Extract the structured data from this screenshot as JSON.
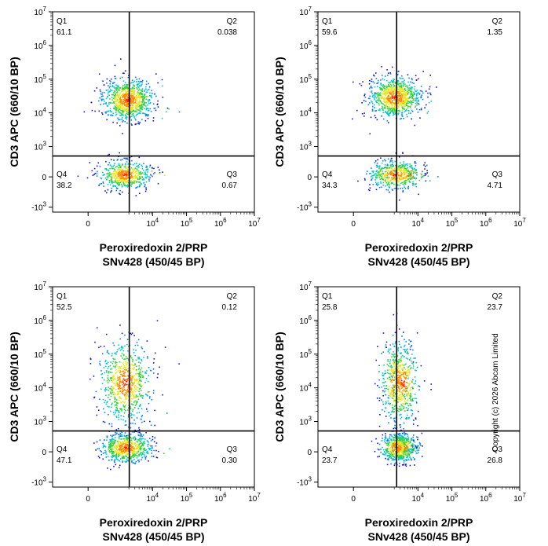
{
  "copyright": "Copyright (c) 2026 Abcam Limited",
  "palette": [
    "#1414c8",
    "#0a7dff",
    "#00c8d2",
    "#34d23c",
    "#e8e61e",
    "#ff8c00",
    "#ff1e00"
  ],
  "chart_data": [
    {
      "type": "scatter",
      "subtype": "flow-cytometry-density-plot",
      "xlabel": [
        "Peroxiredoxin 2/PRP",
        "SNv428 (450/45 BP)"
      ],
      "ylabel": "CD3 APC (660/10 BP)",
      "x_scale": "biexponential",
      "y_scale": "biexponential",
      "x_ticks": [
        "0",
        "10^4",
        "10^5",
        "10^6",
        "10^7"
      ],
      "y_ticks": [
        "10^7",
        "10^6",
        "10^5",
        "10^4",
        "10^3",
        "0",
        "-10^3"
      ],
      "gates": [
        {
          "name": "Q1",
          "value": "61.1"
        },
        {
          "name": "Q2",
          "value": "0.038"
        },
        {
          "name": "Q3",
          "value": "0.67"
        },
        {
          "name": "Q4",
          "value": "38.2"
        }
      ],
      "populations": [
        {
          "x": 1800,
          "y": 25000,
          "fraction": 0.611
        },
        {
          "x": 1500,
          "y": 80,
          "fraction": 0.382
        },
        {
          "x": 9000,
          "y": 20000,
          "fraction": 0.00038
        },
        {
          "x": 9000,
          "y": 60,
          "fraction": 0.0067
        }
      ]
    },
    {
      "type": "scatter",
      "subtype": "flow-cytometry-density-plot",
      "xlabel": [
        "Peroxiredoxin 2/PRP",
        "SNv428 (450/45 BP)"
      ],
      "ylabel": "CD3 APC (660/10 BP)",
      "x_scale": "biexponential",
      "y_scale": "biexponential",
      "x_ticks": [
        "0",
        "10^4",
        "10^5",
        "10^6",
        "10^7"
      ],
      "y_ticks": [
        "10^7",
        "10^6",
        "10^5",
        "10^4",
        "10^3",
        "0",
        "-10^3"
      ],
      "gates": [
        {
          "name": "Q1",
          "value": "59.6"
        },
        {
          "name": "Q2",
          "value": "1.35"
        },
        {
          "name": "Q3",
          "value": "4.71"
        },
        {
          "name": "Q4",
          "value": "34.3"
        }
      ],
      "populations": [
        {
          "x": 2000,
          "y": 30000,
          "fraction": 0.596
        },
        {
          "x": 2000,
          "y": 90,
          "fraction": 0.343
        },
        {
          "x": 6000,
          "y": 22000,
          "fraction": 0.0135
        },
        {
          "x": 5000,
          "y": 80,
          "fraction": 0.0471
        }
      ]
    },
    {
      "type": "scatter",
      "subtype": "flow-cytometry-density-plot",
      "xlabel": [
        "Peroxiredoxin 2/PRP",
        "SNv428 (450/45 BP)"
      ],
      "ylabel": "CD3 APC (660/10 BP)",
      "x_scale": "biexponential",
      "y_scale": "biexponential",
      "x_ticks": [
        "0",
        "10^4",
        "10^5",
        "10^6",
        "10^7"
      ],
      "y_ticks": [
        "10^7",
        "10^6",
        "10^5",
        "10^4",
        "10^3",
        "0",
        "-10^3"
      ],
      "gates": [
        {
          "name": "Q1",
          "value": "52.5"
        },
        {
          "name": "Q2",
          "value": "0.12"
        },
        {
          "name": "Q3",
          "value": "0.30"
        },
        {
          "name": "Q4",
          "value": "47.1"
        }
      ],
      "populations": [
        {
          "x": 1500,
          "y": 15000,
          "fraction": 0.525
        },
        {
          "x": 1600,
          "y": 150,
          "fraction": 0.471
        },
        {
          "x": 8000,
          "y": 15000,
          "fraction": 0.0012
        },
        {
          "x": 8000,
          "y": 100,
          "fraction": 0.003
        }
      ]
    },
    {
      "type": "scatter",
      "subtype": "flow-cytometry-density-plot",
      "xlabel": [
        "Peroxiredoxin 2/PRP",
        "SNv428 (450/45 BP)"
      ],
      "ylabel": "CD3 APC (660/10 BP)",
      "x_scale": "biexponential",
      "y_scale": "biexponential",
      "x_ticks": [
        "0",
        "10^4",
        "10^5",
        "10^6",
        "10^7"
      ],
      "y_ticks": [
        "10^7",
        "10^6",
        "10^5",
        "10^4",
        "10^3",
        "0",
        "-10^3"
      ],
      "gates": [
        {
          "name": "Q1",
          "value": "25.8"
        },
        {
          "name": "Q2",
          "value": "23.7"
        },
        {
          "name": "Q3",
          "value": "26.8"
        },
        {
          "name": "Q4",
          "value": "23.7"
        }
      ],
      "populations": [
        {
          "x": 2200,
          "y": 15000,
          "fraction": 0.258
        },
        {
          "x": 3500,
          "y": 15000,
          "fraction": 0.237
        },
        {
          "x": 3500,
          "y": 150,
          "fraction": 0.268
        },
        {
          "x": 2200,
          "y": 150,
          "fraction": 0.237
        }
      ]
    }
  ]
}
